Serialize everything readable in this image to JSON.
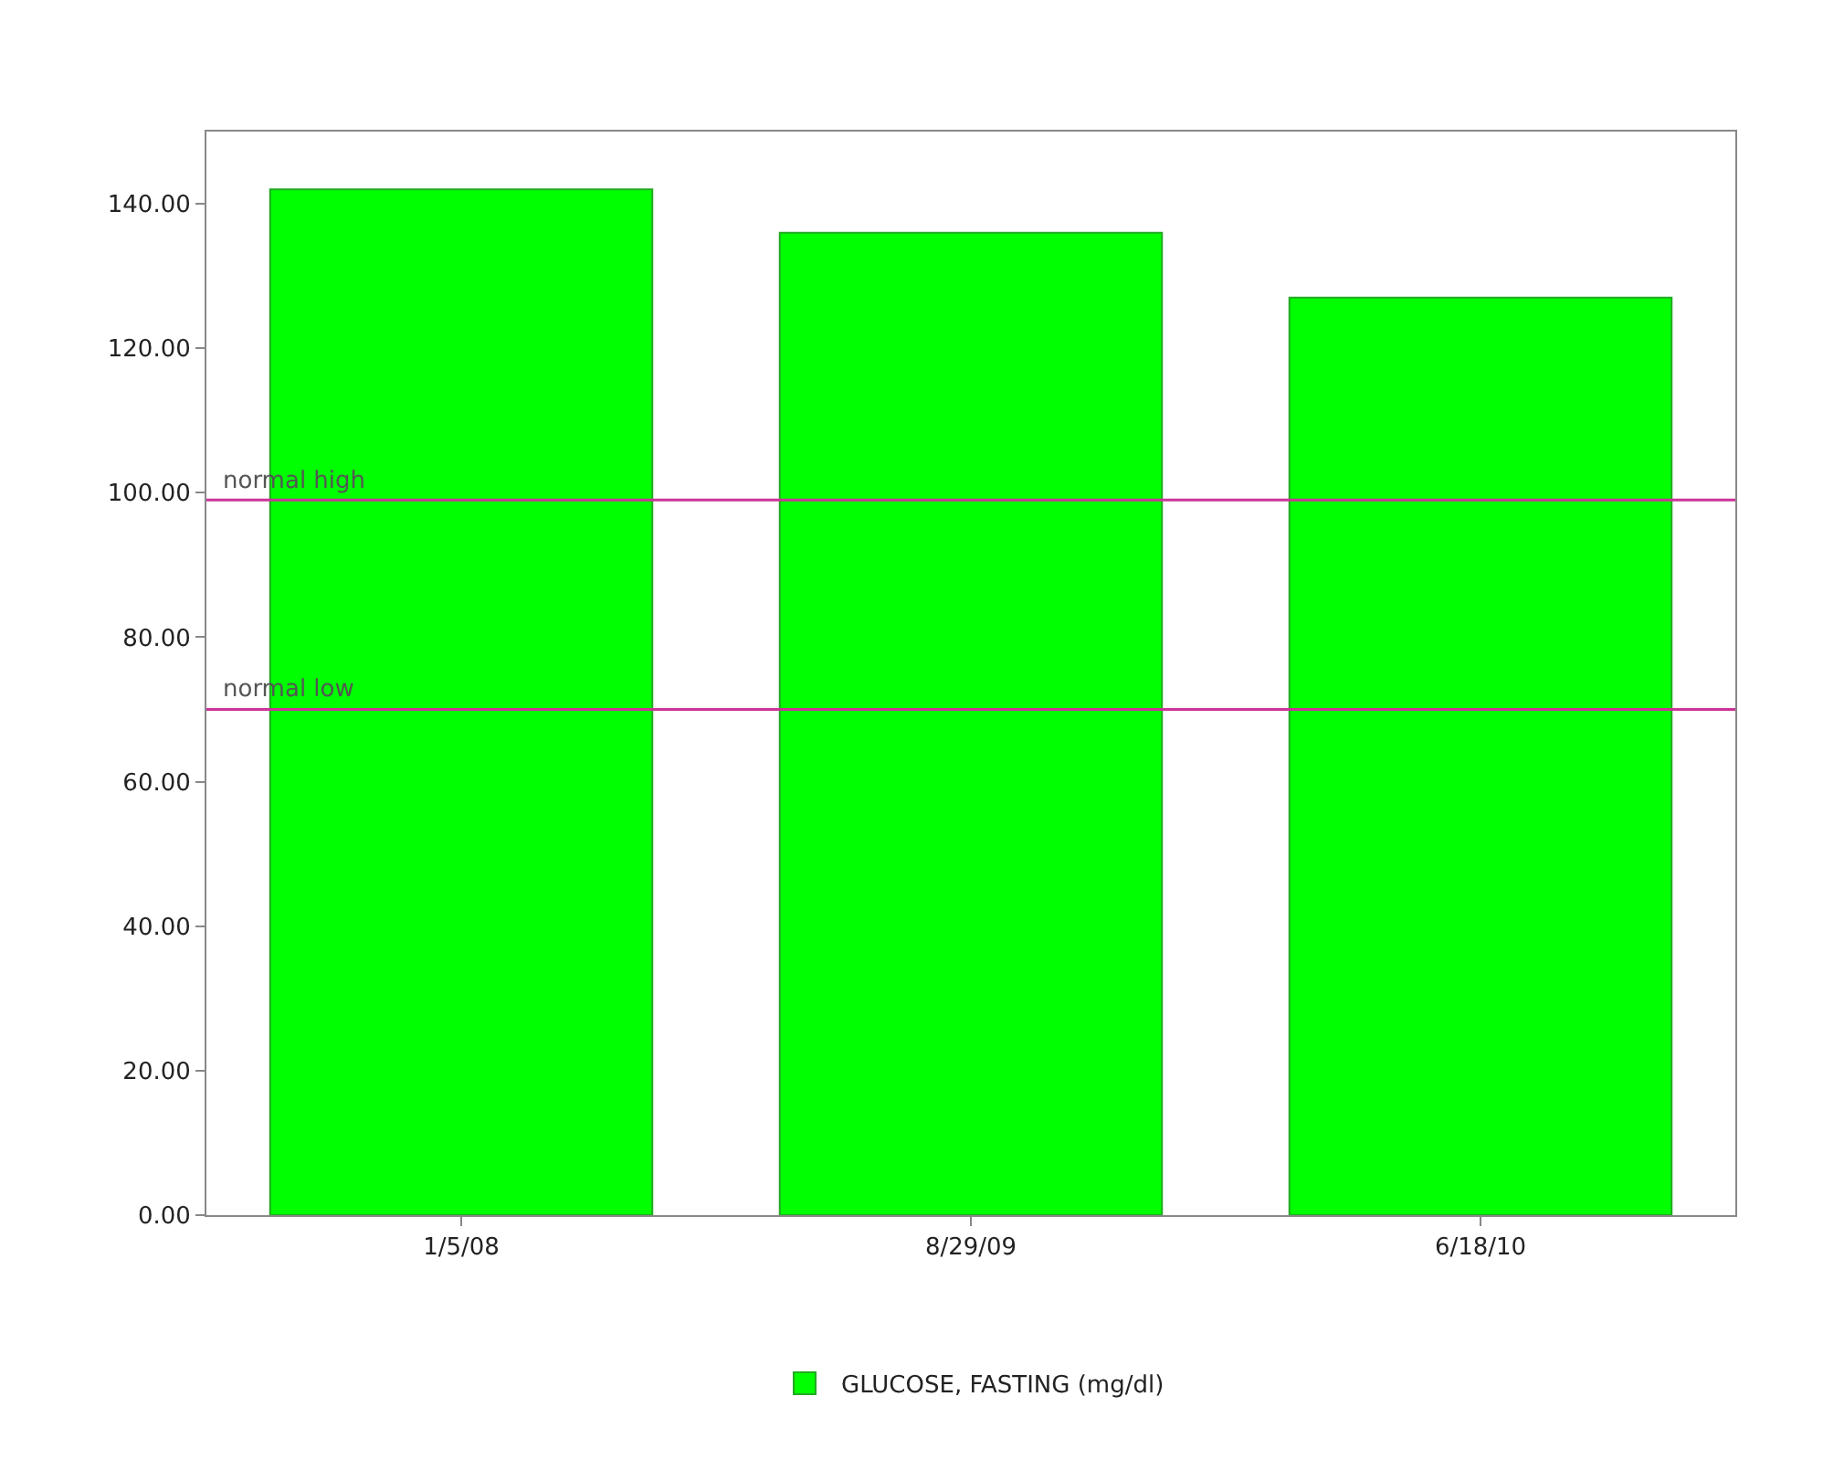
{
  "chart_data": {
    "type": "bar",
    "categories": [
      "1/5/08",
      "8/29/09",
      "6/18/10"
    ],
    "series": [
      {
        "name": "GLUCOSE, FASTING (mg/dl)",
        "color": "#00ff00",
        "values": [
          142,
          136,
          127
        ]
      }
    ],
    "ylim": [
      0,
      150
    ],
    "yticks": [
      {
        "value": 0,
        "label": "0.00"
      },
      {
        "value": 20,
        "label": "20.00"
      },
      {
        "value": 40,
        "label": "40.00"
      },
      {
        "value": 60,
        "label": "60.00"
      },
      {
        "value": 80,
        "label": "80.00"
      },
      {
        "value": 100,
        "label": "100.00"
      },
      {
        "value": 120,
        "label": "120.00"
      },
      {
        "value": 140,
        "label": "140.00"
      }
    ],
    "ref_lines": [
      {
        "axis": "y",
        "value": 99,
        "label": "normal high",
        "color": "#cc3399"
      },
      {
        "axis": "y",
        "value": 70,
        "label": "normal low",
        "color": "#cc3399"
      }
    ],
    "legend": "bottom"
  }
}
